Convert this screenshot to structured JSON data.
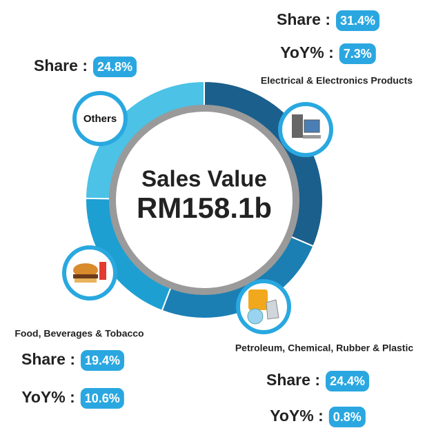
{
  "chart_data": {
    "type": "pie",
    "categories": [
      "Electrical & Electronics Products",
      "Petroleum, Chemical, Rubber & Plastic",
      "Food, Beverages & Tobacco",
      "Others"
    ],
    "values": [
      31.4,
      24.4,
      19.4,
      24.8
    ],
    "value_labels": [
      "31.4%",
      "24.4%",
      "19.4%",
      "24.8%"
    ],
    "yoy": [
      7.3,
      0.8,
      10.6,
      null
    ],
    "yoy_labels": [
      "7.3%",
      "0.8%",
      "10.6%",
      null
    ],
    "colors": [
      "#1b5f8c",
      "#1b7fb3",
      "#1e9fd2",
      "#4bc2e6"
    ],
    "share_label": "Share :",
    "yoy_label": "YoY% :",
    "center_title": "Sales Value",
    "center_value": "RM158.1b"
  }
}
